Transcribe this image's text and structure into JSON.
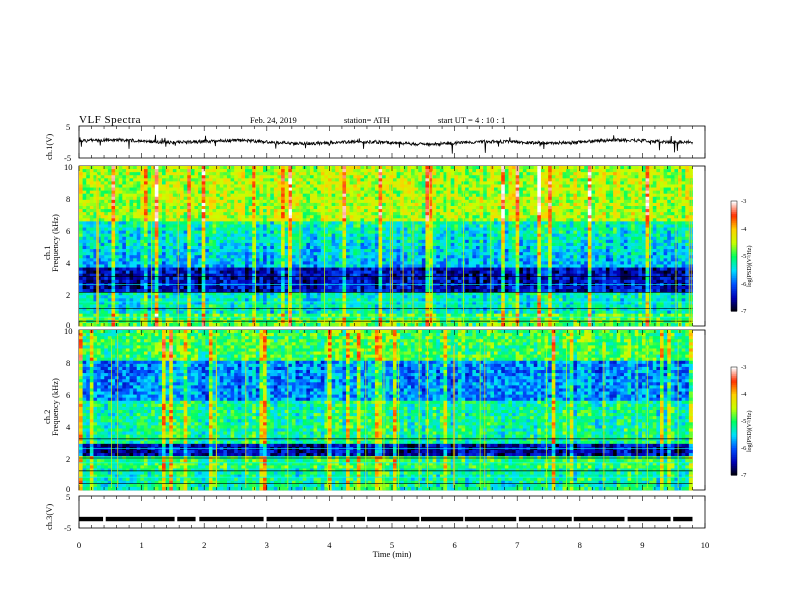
{
  "header": {
    "title": "VLF  Spectra",
    "date": "Feb. 24, 2019",
    "station": "station= ATH",
    "start_time": "start  UT  =   4  : 10 : 1"
  },
  "chart_data": [
    {
      "type": "line",
      "panel": "ch1-waveform",
      "ylabel": "ch.1(V)",
      "ylim": [
        -5,
        5
      ],
      "yticks": [
        "5",
        "-5"
      ],
      "xlim": [
        0,
        10
      ],
      "baseline": 0,
      "noise_amplitude": 0.5
    },
    {
      "type": "heatmap",
      "panel": "ch1-spectrogram",
      "ylabel_top": "ch.1",
      "ylabel": "Frequency  (kHz)",
      "ylim": [
        0,
        10
      ],
      "yticks": [
        "0",
        "2",
        "4",
        "6",
        "8",
        "10"
      ],
      "xlim": [
        0,
        9.8
      ],
      "colorbar": {
        "label": "log(PSD)(V²/Hz)",
        "range": [
          -7,
          -3
        ],
        "ticks": [
          "-3",
          "-4",
          "-5",
          "-6",
          "-7"
        ],
        "colors": [
          "#000000",
          "#0000b4",
          "#0050ff",
          "#00e0ff",
          "#00ff60",
          "#c8ff00",
          "#ffd000",
          "#ff3000",
          "#ffffff"
        ]
      }
    },
    {
      "type": "heatmap",
      "panel": "ch2-spectrogram",
      "ylabel_top": "ch.2",
      "ylabel": "Frequency  (kHz)",
      "ylim": [
        0,
        10
      ],
      "yticks": [
        "0",
        "2",
        "4",
        "6",
        "8",
        "10"
      ],
      "xlim": [
        0,
        9.8
      ],
      "colorbar": {
        "label": "log(PSD)(V²/Hz)",
        "range": [
          -7,
          -3
        ],
        "ticks": [
          "-3",
          "-4",
          "-5",
          "-6",
          "-7"
        ],
        "colors": [
          "#000000",
          "#0000b4",
          "#0050ff",
          "#00e0ff",
          "#00ff60",
          "#c8ff00",
          "#ffd000",
          "#ff3000",
          "#ffffff"
        ]
      }
    },
    {
      "type": "line",
      "panel": "ch3-waveform",
      "ylabel": "ch.3(V)",
      "ylim": [
        -5,
        5
      ],
      "yticks": [
        "5",
        "-5"
      ],
      "xlim": [
        0,
        10
      ],
      "baseline": -2.2
    }
  ],
  "xaxis": {
    "label": "Time  (min)",
    "range": [
      0,
      10
    ],
    "ticks": [
      "0",
      "1",
      "2",
      "3",
      "4",
      "5",
      "6",
      "7",
      "8",
      "9",
      "10"
    ]
  }
}
